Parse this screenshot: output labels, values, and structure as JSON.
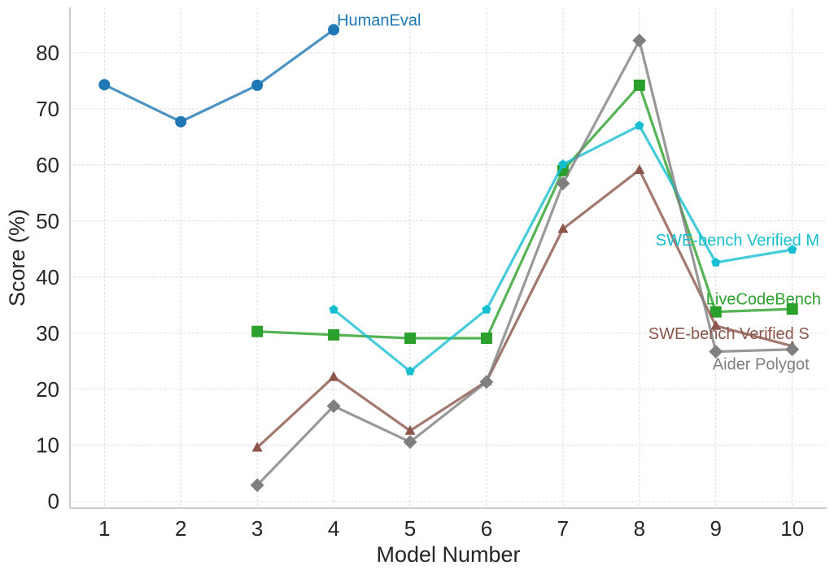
{
  "chart_data": {
    "type": "line",
    "title": "",
    "xlabel": "Model Number",
    "ylabel": "Score (%)",
    "xlim": [
      0.55,
      10.45
    ],
    "ylim": [
      -1.2,
      88.1
    ],
    "xticks": [
      1,
      2,
      3,
      4,
      5,
      6,
      7,
      8,
      9,
      10
    ],
    "yticks": [
      0,
      10,
      20,
      30,
      40,
      50,
      60,
      70,
      80
    ],
    "grid": true,
    "legend": "inline labels at series ends",
    "series": [
      {
        "name": "HumanEval",
        "color": "#1f77b4",
        "marker": "circle",
        "x": [
          1,
          2,
          3,
          4
        ],
        "values": [
          74.3,
          67.7,
          74.2,
          84.1
        ]
      },
      {
        "name": "LiveCodeBench",
        "color": "#2ca02c",
        "marker": "square",
        "x": [
          3,
          4,
          5,
          6,
          7,
          8,
          9,
          10
        ],
        "values": [
          30.3,
          29.7,
          29.1,
          29.1,
          59.0,
          74.2,
          33.8,
          34.3
        ]
      },
      {
        "name": "SWE-bench Verified M",
        "color": "#17becf",
        "marker": "pentagon",
        "x": [
          4,
          5,
          6,
          7,
          8,
          9,
          10
        ],
        "values": [
          34.2,
          23.2,
          34.2,
          60.1,
          67.0,
          42.6,
          44.9
        ]
      },
      {
        "name": "SWE-bench Verified S",
        "color": "#8c564b",
        "marker": "triangle",
        "x": [
          3,
          4,
          5,
          6,
          7,
          8,
          9,
          10
        ],
        "values": [
          9.6,
          22.2,
          12.6,
          21.4,
          48.6,
          59.1,
          31.3,
          27.7
        ]
      },
      {
        "name": "Aider Polygot",
        "color": "#7f7f7f",
        "marker": "diamond",
        "x": [
          3,
          4,
          5,
          6,
          7,
          8,
          9,
          10
        ],
        "values": [
          2.9,
          17.0,
          10.6,
          21.3,
          56.7,
          82.2,
          26.7,
          27.1
        ]
      }
    ]
  }
}
